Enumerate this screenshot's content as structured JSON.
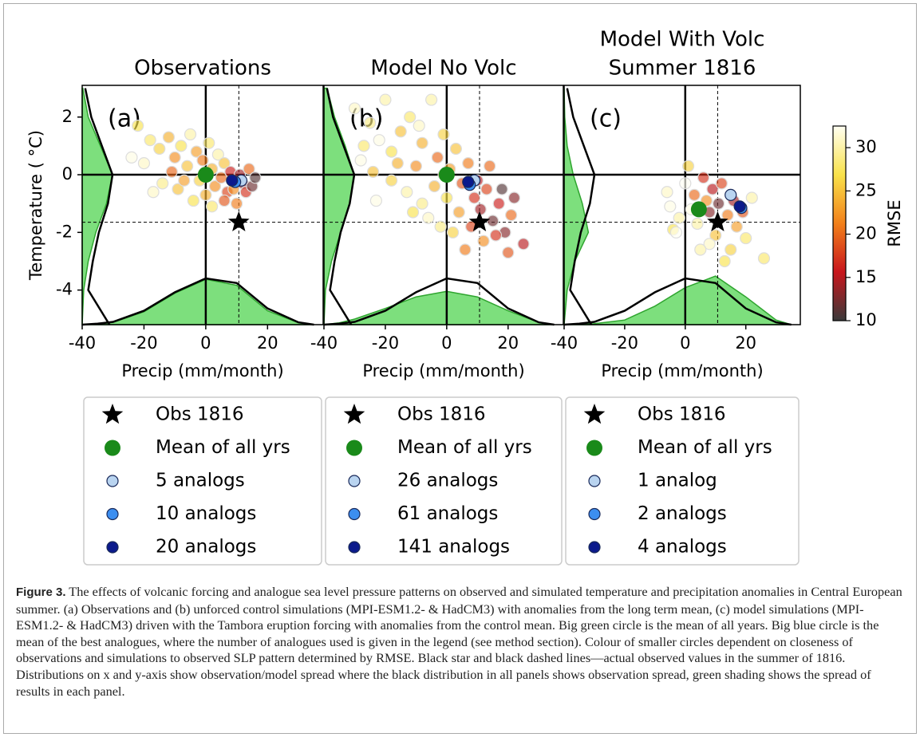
{
  "chart_data": [
    {
      "type": "scatter",
      "title": [
        "Observations"
      ],
      "panel_label": "(a)",
      "xlabel": "Precip (mm/month)",
      "ylabel": "Temperature ( °C)",
      "xlim": [
        -40,
        38
      ],
      "ylim": [
        -5.2,
        3.1
      ],
      "xticks": [
        -40,
        -20,
        0,
        20
      ],
      "yticks": [
        2,
        0,
        -2,
        -4
      ],
      "reference": {
        "x": 10.7,
        "y": -1.65
      },
      "points": {
        "x": [
          -22,
          -18,
          -15,
          -20,
          -12,
          -10,
          -8,
          -6,
          -5,
          -3,
          -2,
          -1,
          1,
          2,
          3,
          4,
          5,
          6,
          7,
          8,
          9,
          11,
          12,
          13,
          15,
          14,
          -14,
          -17,
          -9,
          -4,
          0,
          2,
          6,
          -24,
          -7,
          10,
          16,
          -11
        ],
        "y": [
          1.7,
          1.2,
          0.9,
          0.4,
          1.3,
          0.6,
          1.0,
          0.3,
          1.4,
          0.8,
          -0.2,
          0.5,
          1.1,
          0.2,
          -0.4,
          0.7,
          -0.1,
          0.4,
          -0.6,
          0.1,
          -0.5,
          0.0,
          -0.3,
          -0.6,
          -0.4,
          0.2,
          -0.3,
          -0.6,
          -0.5,
          -0.9,
          -0.7,
          -1.1,
          -0.9,
          0.6,
          -0.2,
          -1.0,
          -0.1,
          0.1
        ],
        "rmse": [
          27,
          28,
          26,
          31,
          24,
          22,
          27,
          25,
          30,
          23,
          26,
          21,
          28,
          24,
          22,
          30,
          20,
          25,
          18,
          16,
          22,
          14,
          13,
          17,
          12,
          20,
          29,
          31,
          25,
          27,
          24,
          28,
          19,
          32,
          23,
          21,
          11,
          20
        ]
      },
      "series": [
        {
          "name": "Obs 1816",
          "marker": "star",
          "color": "#000000",
          "x": [
            10.7
          ],
          "y": [
            -1.65
          ]
        },
        {
          "name": "Mean of all yrs",
          "marker": "big-circle",
          "color": "#1a8a1a",
          "x": [
            0
          ],
          "y": [
            0
          ]
        },
        {
          "name": "5 analogs",
          "marker": "circle",
          "color": "#b9d4f0",
          "x": [
            11.5
          ],
          "y": [
            -0.2
          ]
        },
        {
          "name": "10 analogs",
          "marker": "circle",
          "color": "#3c8ef0",
          "x": [
            9.5
          ],
          "y": [
            -0.25
          ]
        },
        {
          "name": "20 analogs",
          "marker": "circle",
          "color": "#0b1a8c",
          "x": [
            8.5
          ],
          "y": [
            -0.2
          ]
        }
      ],
      "x_density": {
        "x": [
          -40,
          -35,
          -30,
          -20,
          -10,
          0,
          10,
          20,
          30,
          35
        ],
        "observed": [
          0,
          0.02,
          0.06,
          0.3,
          0.7,
          1,
          0.9,
          0.35,
          0.05,
          0
        ],
        "panel": [
          0,
          0.01,
          0.05,
          0.28,
          0.68,
          0.98,
          0.85,
          0.3,
          0.04,
          0
        ]
      },
      "y_density": {
        "y": [
          -5.2,
          -4,
          -3,
          -2,
          -1,
          0,
          1,
          2,
          3
        ],
        "observed": [
          0.9,
          0.2,
          0.35,
          0.55,
          0.85,
          1,
          0.65,
          0.3,
          0.1
        ],
        "panel": [
          0,
          0.05,
          0.2,
          0.45,
          0.8,
          1,
          0.6,
          0.2,
          0.02
        ]
      }
    },
    {
      "type": "scatter",
      "title": [
        "Model No Volc"
      ],
      "panel_label": "(b)",
      "xlabel": "Precip (mm/month)",
      "xlim": [
        -40,
        38
      ],
      "ylim": [
        -5.2,
        3.1
      ],
      "xticks": [
        -40,
        -20,
        0,
        20
      ],
      "reference": {
        "x": 10.7,
        "y": -1.65
      },
      "points": {
        "x": [
          -30,
          -25,
          -22,
          -18,
          -28,
          -15,
          -12,
          -10,
          -8,
          -5,
          -3,
          -1,
          1,
          3,
          5,
          7,
          9,
          11,
          13,
          15,
          17,
          19,
          21,
          25,
          12,
          8,
          4,
          0,
          -4,
          -8,
          -13,
          -18,
          -23,
          -27,
          -20,
          -6,
          2,
          6,
          10,
          14,
          18,
          20,
          -16,
          -11,
          -2,
          16,
          -24,
          22,
          -9,
          -1
        ],
        "y": [
          2.3,
          1.8,
          1.2,
          0.8,
          0.5,
          1.5,
          2.0,
          0.3,
          1.1,
          2.6,
          0.6,
          1.4,
          0.2,
          0.9,
          -0.3,
          0.4,
          -0.8,
          -1.2,
          -0.5,
          -1.6,
          -1.0,
          -2.0,
          -1.4,
          -2.4,
          -2.3,
          -1.8,
          -1.3,
          -0.8,
          -0.4,
          -1.0,
          -0.6,
          -0.2,
          -0.9,
          1.0,
          2.6,
          -1.5,
          -2.0,
          -2.6,
          -0.2,
          0.3,
          -0.5,
          -2.7,
          0.4,
          -1.3,
          -1.8,
          -2.1,
          0.1,
          -0.8,
          1.7,
          0.0
        ],
        "rmse": [
          31,
          29,
          32,
          27,
          32,
          25,
          28,
          22,
          24,
          30,
          20,
          26,
          23,
          25,
          19,
          21,
          17,
          14,
          18,
          12,
          16,
          13,
          20,
          15,
          22,
          18,
          23,
          27,
          24,
          29,
          30,
          26,
          32,
          28,
          30,
          31,
          26,
          21,
          15,
          20,
          11,
          19,
          24,
          27,
          29,
          17,
          25,
          13,
          31,
          22
        ]
      },
      "series": [
        {
          "name": "Obs 1816",
          "marker": "star",
          "color": "#000000",
          "x": [
            10.7
          ],
          "y": [
            -1.65
          ]
        },
        {
          "name": "Mean of all yrs",
          "marker": "big-circle",
          "color": "#1a8a1a",
          "x": [
            0
          ],
          "y": [
            0
          ]
        },
        {
          "name": "26 analogs",
          "marker": "circle",
          "color": "#b9d4f0",
          "x": [
            9
          ],
          "y": [
            -0.2
          ]
        },
        {
          "name": "61 analogs",
          "marker": "circle",
          "color": "#3c8ef0",
          "x": [
            7.5
          ],
          "y": [
            -0.35
          ]
        },
        {
          "name": "141 analogs",
          "marker": "circle",
          "color": "#0b1a8c",
          "x": [
            7
          ],
          "y": [
            -0.25
          ]
        }
      ],
      "x_density": {
        "x": [
          -40,
          -35,
          -30,
          -20,
          -10,
          0,
          10,
          20,
          30,
          35
        ],
        "observed": [
          0,
          0.02,
          0.06,
          0.3,
          0.7,
          1,
          0.9,
          0.35,
          0.05,
          0
        ],
        "panel": [
          0,
          0.04,
          0.12,
          0.35,
          0.6,
          0.72,
          0.6,
          0.3,
          0.05,
          0
        ]
      },
      "y_density": {
        "y": [
          -5.2,
          -4,
          -3,
          -2,
          -1,
          0,
          1,
          2,
          3
        ],
        "observed": [
          0.9,
          0.2,
          0.35,
          0.55,
          0.85,
          1,
          0.65,
          0.3,
          0.1
        ],
        "panel": [
          0,
          0.05,
          0.25,
          0.55,
          0.85,
          1,
          0.7,
          0.35,
          0.1
        ]
      }
    },
    {
      "type": "scatter",
      "title": [
        "Model With Volc",
        "Summer 1816"
      ],
      "panel_label": "(c)",
      "xlabel": "Precip (mm/month)",
      "xlim": [
        -40,
        38
      ],
      "ylim": [
        -5.2,
        3.1
      ],
      "xticks": [
        -40,
        -20,
        0,
        20
      ],
      "reference": {
        "x": 10.7,
        "y": -1.65
      },
      "points": {
        "x": [
          -6,
          -5,
          -4,
          -2,
          0,
          1,
          3,
          4,
          6,
          7,
          8,
          9,
          10,
          11,
          12,
          14,
          16,
          17,
          19,
          22,
          20,
          26,
          13,
          8,
          5,
          2,
          -3,
          15
        ],
        "y": [
          -0.6,
          -1.1,
          -1.9,
          -1.5,
          -0.3,
          0.3,
          -0.7,
          -1.7,
          -0.1,
          -0.9,
          -1.3,
          -0.5,
          -2.1,
          -1.0,
          -0.3,
          -1.4,
          -0.9,
          -1.8,
          -1.3,
          -0.8,
          -2.2,
          -2.9,
          -3.0,
          -2.4,
          -2.6,
          -1.2,
          -2.0,
          -2.6
        ],
        "rmse": [
          31,
          32,
          27,
          30,
          33,
          26,
          20,
          30,
          17,
          22,
          13,
          15,
          25,
          12,
          18,
          21,
          14,
          23,
          19,
          30,
          28,
          28,
          27,
          31,
          30,
          32,
          33,
          26
        ]
      },
      "series": [
        {
          "name": "Obs 1816",
          "marker": "star",
          "color": "#000000",
          "x": [
            10.7
          ],
          "y": [
            -1.65
          ]
        },
        {
          "name": "Mean of all yrs",
          "marker": "big-circle",
          "color": "#1a8a1a",
          "x": [
            4.5
          ],
          "y": [
            -1.2
          ]
        },
        {
          "name": "1 analog",
          "marker": "circle",
          "color": "#b9d4f0",
          "x": [
            15
          ],
          "y": [
            -0.7
          ]
        },
        {
          "name": "2 analogs",
          "marker": "circle",
          "color": "#3c8ef0",
          "x": [
            18.5
          ],
          "y": [
            -1.15
          ]
        },
        {
          "name": "4 analogs",
          "marker": "circle",
          "color": "#0b1a8c",
          "x": [
            18
          ],
          "y": [
            -1.1
          ]
        }
      ],
      "x_density": {
        "x": [
          -40,
          -35,
          -30,
          -20,
          -10,
          0,
          10,
          20,
          30,
          35
        ],
        "observed": [
          0,
          0.02,
          0.06,
          0.3,
          0.7,
          1,
          0.9,
          0.35,
          0.05,
          0
        ],
        "panel": [
          0,
          0,
          0.02,
          0.1,
          0.4,
          0.8,
          1.05,
          0.6,
          0.1,
          0
        ]
      },
      "y_density": {
        "y": [
          -5.2,
          -4,
          -3,
          -2,
          -1,
          0,
          1,
          2,
          3
        ],
        "observed": [
          0.9,
          0.2,
          0.35,
          0.55,
          0.85,
          1,
          0.65,
          0.3,
          0.1
        ],
        "panel": [
          0,
          0.1,
          0.35,
          0.8,
          0.6,
          0.3,
          0.1,
          0.02,
          0
        ]
      },
      "colorbar": {
        "label": "RMSE",
        "lim": [
          10,
          32.5
        ],
        "ticks": [
          10,
          15,
          20,
          25,
          30
        ],
        "colormap": [
          "#3a3a3a",
          "#c8161c",
          "#f2801a",
          "#f9e24a",
          "#fffff2"
        ]
      }
    }
  ],
  "caption": {
    "label": "Figure 3.",
    "text": " The effects of volcanic forcing and analogue sea level pressure patterns on observed and simulated temperature and precipitation anomalies in Central European summer. (a) Observations and (b) unforced control simulations (MPI-ESM1.2- & HadCM3) with anomalies from the long term mean, (c) model simulations (MPI-ESM1.2- & HadCM3) driven with the Tambora eruption forcing with anomalies from the control mean. Big green circle is the mean of all years. Big blue circle is the mean of the best analogues, where the number of analogues used is given in the legend (see method section). Colour of smaller circles dependent on closeness of observations and simulations to observed SLP pattern determined by RMSE. Black star and black dashed lines—actual observed values in the summer of 1816. Distributions on x and y-axis show observation/model spread where the black distribution in all panels shows observation spread, green shading shows the spread of results in each panel."
  }
}
